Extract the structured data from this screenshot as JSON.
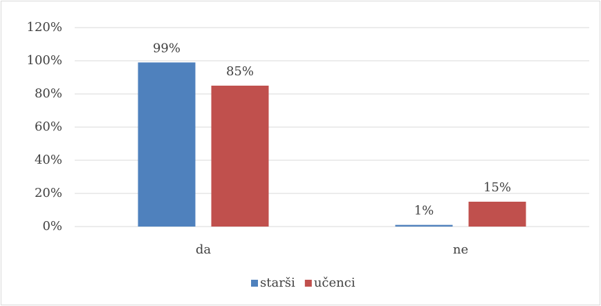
{
  "chart_data": {
    "type": "bar",
    "categories": [
      "da",
      "ne"
    ],
    "series": [
      {
        "name": "starši",
        "color": "#4f81bd",
        "values": [
          99,
          1
        ],
        "value_labels": [
          "99%",
          "1%"
        ]
      },
      {
        "name": "učenci",
        "color": "#c0504d",
        "values": [
          85,
          15
        ],
        "value_labels": [
          "85%",
          "15%"
        ]
      }
    ],
    "ylim": [
      0,
      120
    ],
    "yticks": [
      {
        "value": 0,
        "label": "0%"
      },
      {
        "value": 20,
        "label": "20%"
      },
      {
        "value": 40,
        "label": "40%"
      },
      {
        "value": 60,
        "label": "60%"
      },
      {
        "value": 80,
        "label": "80%"
      },
      {
        "value": 100,
        "label": "100%"
      },
      {
        "value": 120,
        "label": "120%"
      }
    ],
    "grid": true,
    "legend": "bottom"
  }
}
